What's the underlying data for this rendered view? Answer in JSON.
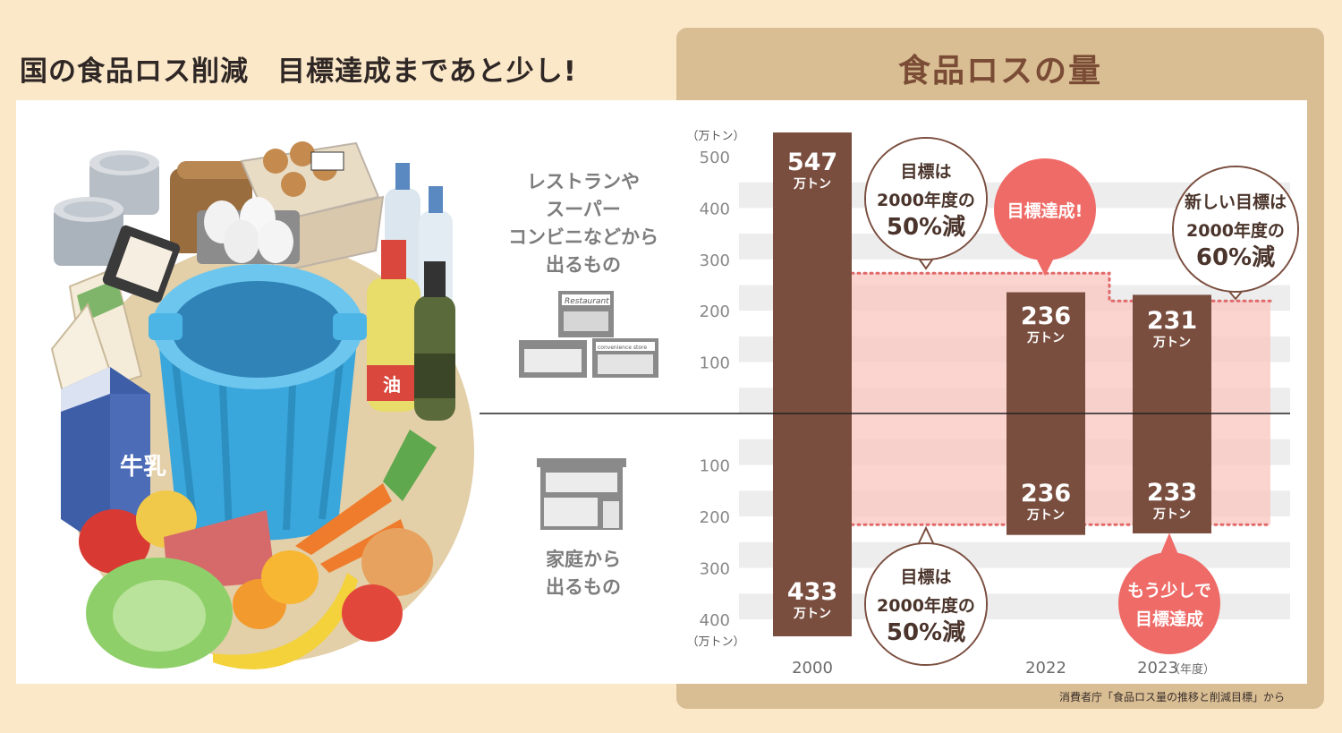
{
  "headline": "国の食品ロス削減　目標達成まであと少し!",
  "panel_title": "食品ロスの量",
  "source_note": "消費者庁「食品ロス量の推移と削減目標」から",
  "labels": {
    "business": "レストランや\nスーパー\nコンビニなどから\n出るもの",
    "household": "家庭から\n出るもの",
    "shop_sign": "Restaurant",
    "conv_sign": "convenience store",
    "oil": "油",
    "milk": "牛乳"
  },
  "colors": {
    "bar": "#7a4e3f",
    "target_band": "#f9c5c0",
    "target_line": "#e06a6a",
    "achieved_bubble": "#ef6b67",
    "background": "#fbe8c9",
    "panel": "#d9bd93"
  },
  "chart_data": {
    "type": "bar",
    "categories": [
      "2000",
      "2022",
      "2023"
    ],
    "unit_label": "（万トン）",
    "x_unit": "（年度）",
    "value_suffix": "万トン",
    "series": [
      {
        "name": "レストランやスーパーコンビニなどから出るもの",
        "values": [
          547,
          236,
          231
        ]
      },
      {
        "name": "家庭から出るもの",
        "values": [
          433,
          236,
          233
        ]
      }
    ],
    "upper_ticks": [
      100,
      200,
      300,
      400,
      500
    ],
    "lower_ticks": [
      100,
      200,
      300,
      400
    ],
    "ylim_upper": [
      0,
      500
    ],
    "ylim_lower": [
      0,
      400
    ],
    "targets_upper": [
      273,
      219
    ],
    "target_lower": 216,
    "annotations": {
      "target_upper": [
        "目標は",
        "2000年度の",
        "50%減"
      ],
      "achieved": [
        "目標達成!"
      ],
      "new_target": [
        "新しい目標は",
        "2000年度の",
        "60%減"
      ],
      "target_lower": [
        "目標は",
        "2000年度の",
        "50%減"
      ],
      "almost": [
        "もう少しで",
        "目標達成"
      ]
    }
  }
}
